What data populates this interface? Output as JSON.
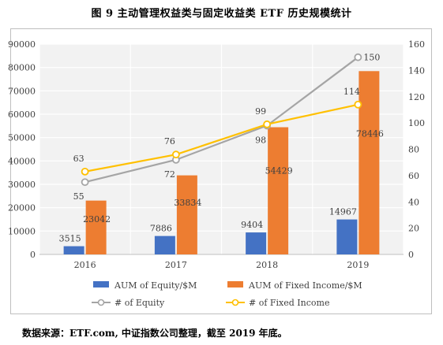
{
  "figure": {
    "title": "图 9 主动管理权益类与固定收益类 ETF 历史规模统计",
    "source": "数据来源：ETF.com, 中证指数公司整理，截至 2019 年底。"
  },
  "chart_data": {
    "type": "bar",
    "categories": [
      "2016",
      "2017",
      "2018",
      "2019"
    ],
    "series": [
      {
        "name": "AUM of Equity/$M",
        "type": "bar",
        "axis": "left",
        "color": "#4472c4",
        "values": [
          3515,
          7886,
          9404,
          14967
        ]
      },
      {
        "name": "AUM of Fixed Income/$M",
        "type": "bar",
        "axis": "left",
        "color": "#ed7d31",
        "values": [
          23042,
          33834,
          54429,
          78446
        ]
      },
      {
        "name": "# of Equity",
        "type": "line",
        "axis": "right",
        "color": "#a5a5a5",
        "values": [
          55,
          72,
          98,
          150
        ]
      },
      {
        "name": "# of Fixed Income",
        "type": "line",
        "axis": "right",
        "color": "#ffc000",
        "values": [
          63,
          76,
          99,
          114
        ]
      }
    ],
    "y_left": {
      "min": 0,
      "max": 90000,
      "ticks": [
        "0",
        "10000",
        "20000",
        "30000",
        "40000",
        "50000",
        "60000",
        "70000",
        "80000",
        "90000"
      ]
    },
    "y_right": {
      "min": 0,
      "max": 160,
      "ticks": [
        "0",
        "20",
        "40",
        "60",
        "80",
        "100",
        "120",
        "140",
        "160"
      ]
    },
    "grid": true,
    "legend_position": "bottom"
  }
}
